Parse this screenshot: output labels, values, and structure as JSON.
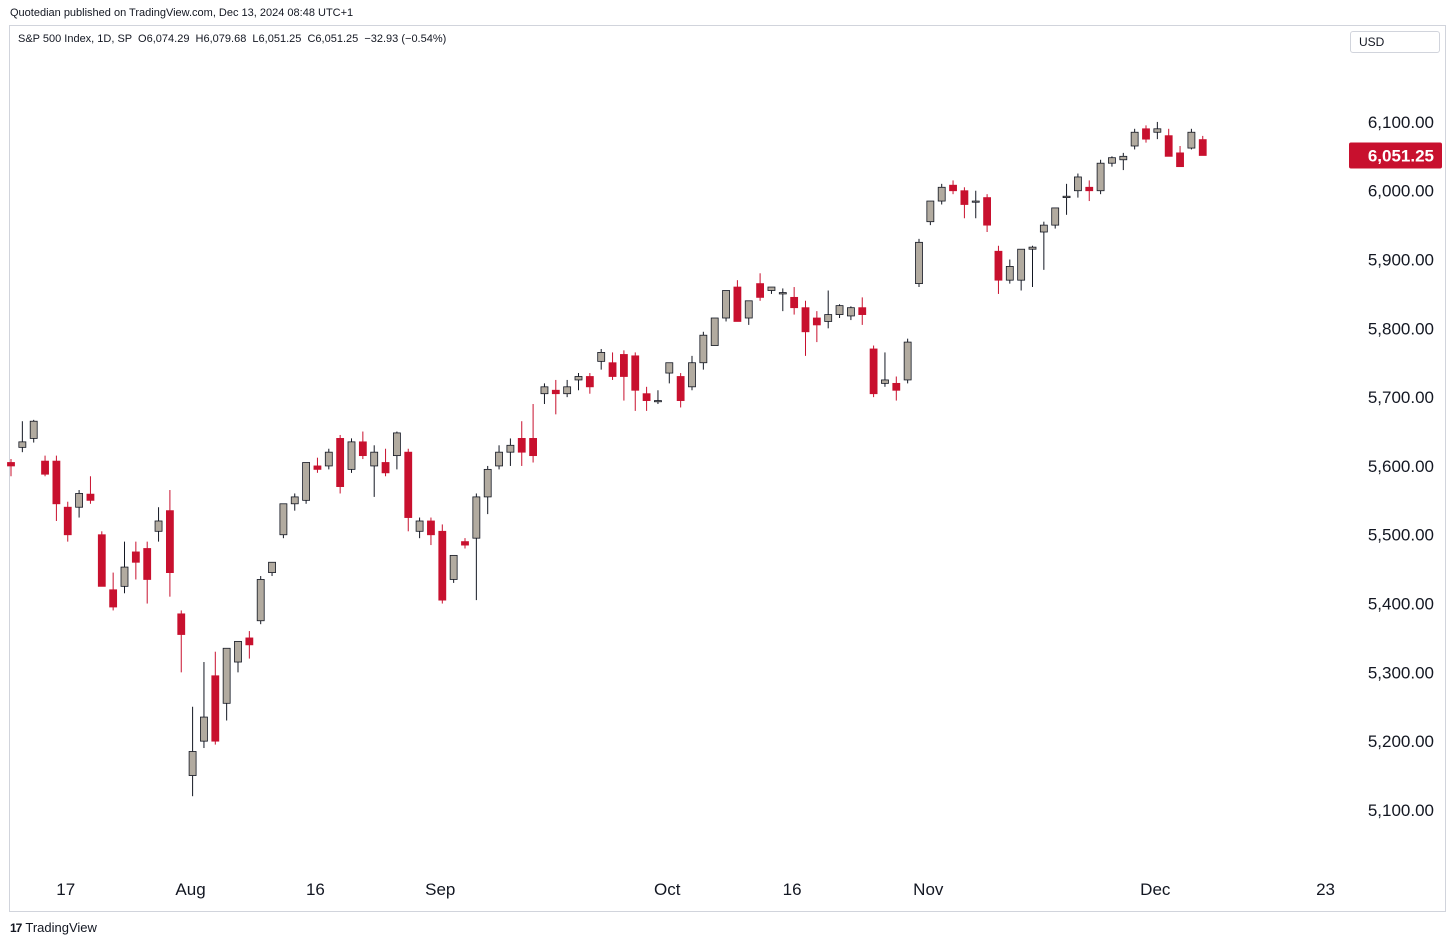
{
  "header": {
    "published": "Quotedian published on TradingView.com, Dec 13, 2024 08:48 UTC+1",
    "legend": "S&P 500 Index, 1D, SP  O6,074.29  H6,079.68  L6,051.25  C6,051.25  −32.93 (−0.54%)",
    "currency": "USD"
  },
  "footer": {
    "brand": "TradingView",
    "logo_glyph": "17"
  },
  "colors": {
    "up": "#b2aba0",
    "down": "#c8102e",
    "wick": "#131722",
    "price_tag": "#c8102e"
  },
  "chart_data": {
    "type": "candlestick",
    "title": "S&P 500 Index, 1D, SP",
    "ylim": [
      5020,
      6190
    ],
    "y_ticks": [
      "5,100.00",
      "5,200.00",
      "5,300.00",
      "5,400.00",
      "5,500.00",
      "5,600.00",
      "5,700.00",
      "5,800.00",
      "5,900.00",
      "6,000.00",
      "6,100.00"
    ],
    "x_ticks": [
      {
        "label": "17",
        "index": 2
      },
      {
        "label": "Aug",
        "index": 13
      },
      {
        "label": "16",
        "index": 24
      },
      {
        "label": "Sep",
        "index": 35
      },
      {
        "label": "Oct",
        "index": 55
      },
      {
        "label": "16",
        "index": 66
      },
      {
        "label": "Nov",
        "index": 78
      },
      {
        "label": "Dec",
        "index": 98
      },
      {
        "label": "23",
        "index": 113
      }
    ],
    "last_price": "6,051.25",
    "candles": [
      {
        "o": 5605,
        "h": 5610,
        "l": 5585,
        "c": 5600
      },
      {
        "o": 5627,
        "h": 5665,
        "l": 5620,
        "c": 5635
      },
      {
        "o": 5640,
        "h": 5667,
        "l": 5634,
        "c": 5665
      },
      {
        "o": 5607,
        "h": 5615,
        "l": 5585,
        "c": 5588
      },
      {
        "o": 5607,
        "h": 5615,
        "l": 5520,
        "c": 5545
      },
      {
        "o": 5540,
        "h": 5548,
        "l": 5490,
        "c": 5500
      },
      {
        "o": 5540,
        "h": 5565,
        "l": 5525,
        "c": 5560
      },
      {
        "o": 5559,
        "h": 5585,
        "l": 5545,
        "c": 5550
      },
      {
        "o": 5500,
        "h": 5505,
        "l": 5425,
        "c": 5425
      },
      {
        "o": 5420,
        "h": 5445,
        "l": 5390,
        "c": 5395
      },
      {
        "o": 5425,
        "h": 5490,
        "l": 5415,
        "c": 5453
      },
      {
        "o": 5475,
        "h": 5490,
        "l": 5435,
        "c": 5460
      },
      {
        "o": 5480,
        "h": 5490,
        "l": 5400,
        "c": 5435
      },
      {
        "o": 5505,
        "h": 5540,
        "l": 5490,
        "c": 5520
      },
      {
        "o": 5535,
        "h": 5565,
        "l": 5410,
        "c": 5445
      },
      {
        "o": 5385,
        "h": 5390,
        "l": 5300,
        "c": 5355
      },
      {
        "o": 5150,
        "h": 5250,
        "l": 5120,
        "c": 5185
      },
      {
        "o": 5200,
        "h": 5315,
        "l": 5190,
        "c": 5235
      },
      {
        "o": 5295,
        "h": 5330,
        "l": 5195,
        "c": 5200
      },
      {
        "o": 5255,
        "h": 5330,
        "l": 5230,
        "c": 5335
      },
      {
        "o": 5315,
        "h": 5345,
        "l": 5300,
        "c": 5345
      },
      {
        "o": 5350,
        "h": 5360,
        "l": 5320,
        "c": 5340
      },
      {
        "o": 5375,
        "h": 5440,
        "l": 5370,
        "c": 5435
      },
      {
        "o": 5445,
        "h": 5460,
        "l": 5440,
        "c": 5460
      },
      {
        "o": 5500,
        "h": 5545,
        "l": 5495,
        "c": 5545
      },
      {
        "o": 5545,
        "h": 5560,
        "l": 5535,
        "c": 5555
      },
      {
        "o": 5550,
        "h": 5605,
        "l": 5545,
        "c": 5605
      },
      {
        "o": 5600,
        "h": 5612,
        "l": 5590,
        "c": 5595
      },
      {
        "o": 5600,
        "h": 5625,
        "l": 5595,
        "c": 5620
      },
      {
        "o": 5640,
        "h": 5645,
        "l": 5560,
        "c": 5570
      },
      {
        "o": 5595,
        "h": 5640,
        "l": 5590,
        "c": 5635
      },
      {
        "o": 5635,
        "h": 5650,
        "l": 5610,
        "c": 5615
      },
      {
        "o": 5600,
        "h": 5630,
        "l": 5555,
        "c": 5620
      },
      {
        "o": 5605,
        "h": 5625,
        "l": 5585,
        "c": 5590
      },
      {
        "o": 5615,
        "h": 5650,
        "l": 5595,
        "c": 5648
      },
      {
        "o": 5620,
        "h": 5625,
        "l": 5505,
        "c": 5525
      },
      {
        "o": 5505,
        "h": 5525,
        "l": 5495,
        "c": 5520
      },
      {
        "o": 5520,
        "h": 5525,
        "l": 5485,
        "c": 5500
      },
      {
        "o": 5505,
        "h": 5515,
        "l": 5400,
        "c": 5405
      },
      {
        "o": 5435,
        "h": 5470,
        "l": 5430,
        "c": 5470
      },
      {
        "o": 5490,
        "h": 5495,
        "l": 5480,
        "c": 5485
      },
      {
        "o": 5495,
        "h": 5560,
        "l": 5405,
        "c": 5555
      },
      {
        "o": 5555,
        "h": 5600,
        "l": 5530,
        "c": 5595
      },
      {
        "o": 5600,
        "h": 5630,
        "l": 5595,
        "c": 5620
      },
      {
        "o": 5620,
        "h": 5640,
        "l": 5600,
        "c": 5630
      },
      {
        "o": 5640,
        "h": 5665,
        "l": 5600,
        "c": 5620
      },
      {
        "o": 5640,
        "h": 5690,
        "l": 5605,
        "c": 5615
      },
      {
        "o": 5705,
        "h": 5720,
        "l": 5690,
        "c": 5715
      },
      {
        "o": 5710,
        "h": 5725,
        "l": 5675,
        "c": 5705
      },
      {
        "o": 5705,
        "h": 5725,
        "l": 5700,
        "c": 5715
      },
      {
        "o": 5725,
        "h": 5735,
        "l": 5710,
        "c": 5730
      },
      {
        "o": 5730,
        "h": 5735,
        "l": 5705,
        "c": 5715
      },
      {
        "o": 5752,
        "h": 5770,
        "l": 5740,
        "c": 5765
      },
      {
        "o": 5750,
        "h": 5765,
        "l": 5725,
        "c": 5730
      },
      {
        "o": 5762,
        "h": 5768,
        "l": 5695,
        "c": 5730
      },
      {
        "o": 5760,
        "h": 5765,
        "l": 5680,
        "c": 5710
      },
      {
        "o": 5705,
        "h": 5715,
        "l": 5680,
        "c": 5695
      },
      {
        "o": 5695,
        "h": 5710,
        "l": 5690,
        "c": 5695
      },
      {
        "o": 5735,
        "h": 5750,
        "l": 5720,
        "c": 5750
      },
      {
        "o": 5730,
        "h": 5735,
        "l": 5685,
        "c": 5695
      },
      {
        "o": 5715,
        "h": 5760,
        "l": 5710,
        "c": 5750
      },
      {
        "o": 5750,
        "h": 5795,
        "l": 5740,
        "c": 5790
      },
      {
        "o": 5775,
        "h": 5815,
        "l": 5775,
        "c": 5815
      },
      {
        "o": 5815,
        "h": 5855,
        "l": 5810,
        "c": 5855
      },
      {
        "o": 5860,
        "h": 5870,
        "l": 5810,
        "c": 5810
      },
      {
        "o": 5815,
        "h": 5840,
        "l": 5805,
        "c": 5840
      },
      {
        "o": 5865,
        "h": 5880,
        "l": 5840,
        "c": 5845
      },
      {
        "o": 5855,
        "h": 5860,
        "l": 5850,
        "c": 5860
      },
      {
        "o": 5850,
        "h": 5858,
        "l": 5825,
        "c": 5852
      },
      {
        "o": 5845,
        "h": 5860,
        "l": 5820,
        "c": 5830
      },
      {
        "o": 5830,
        "h": 5840,
        "l": 5760,
        "c": 5795
      },
      {
        "o": 5815,
        "h": 5825,
        "l": 5780,
        "c": 5805
      },
      {
        "o": 5810,
        "h": 5855,
        "l": 5800,
        "c": 5820
      },
      {
        "o": 5820,
        "h": 5835,
        "l": 5815,
        "c": 5833
      },
      {
        "o": 5818,
        "h": 5832,
        "l": 5812,
        "c": 5830
      },
      {
        "o": 5830,
        "h": 5845,
        "l": 5805,
        "c": 5820
      },
      {
        "o": 5770,
        "h": 5775,
        "l": 5700,
        "c": 5705
      },
      {
        "o": 5720,
        "h": 5765,
        "l": 5715,
        "c": 5725
      },
      {
        "o": 5720,
        "h": 5730,
        "l": 5695,
        "c": 5710
      },
      {
        "o": 5725,
        "h": 5785,
        "l": 5720,
        "c": 5780
      },
      {
        "o": 5865,
        "h": 5930,
        "l": 5860,
        "c": 5925
      },
      {
        "o": 5955,
        "h": 5985,
        "l": 5950,
        "c": 5985
      },
      {
        "o": 5985,
        "h": 6010,
        "l": 5980,
        "c": 6005
      },
      {
        "o": 6008,
        "h": 6015,
        "l": 5995,
        "c": 6000
      },
      {
        "o": 6000,
        "h": 6005,
        "l": 5960,
        "c": 5980
      },
      {
        "o": 5985,
        "h": 6000,
        "l": 5960,
        "c": 5985
      },
      {
        "o": 5990,
        "h": 5995,
        "l": 5940,
        "c": 5950
      },
      {
        "o": 5912,
        "h": 5920,
        "l": 5850,
        "c": 5870
      },
      {
        "o": 5870,
        "h": 5900,
        "l": 5865,
        "c": 5890
      },
      {
        "o": 5870,
        "h": 5915,
        "l": 5855,
        "c": 5915
      },
      {
        "o": 5915,
        "h": 5920,
        "l": 5860,
        "c": 5918
      },
      {
        "o": 5940,
        "h": 5955,
        "l": 5885,
        "c": 5950
      },
      {
        "o": 5950,
        "h": 5975,
        "l": 5945,
        "c": 5975
      },
      {
        "o": 5990,
        "h": 6010,
        "l": 5965,
        "c": 5992
      },
      {
        "o": 6000,
        "h": 6025,
        "l": 5990,
        "c": 6020
      },
      {
        "o": 6005,
        "h": 6015,
        "l": 5985,
        "c": 6000
      },
      {
        "o": 6000,
        "h": 6045,
        "l": 5995,
        "c": 6040
      },
      {
        "o": 6040,
        "h": 6050,
        "l": 6035,
        "c": 6048
      },
      {
        "o": 6045,
        "h": 6055,
        "l": 6030,
        "c": 6050
      },
      {
        "o": 6065,
        "h": 6090,
        "l": 6060,
        "c": 6085
      },
      {
        "o": 6090,
        "h": 6095,
        "l": 6070,
        "c": 6075
      },
      {
        "o": 6085,
        "h": 6100,
        "l": 6075,
        "c": 6090
      },
      {
        "o": 6080,
        "h": 6090,
        "l": 6050,
        "c": 6050
      },
      {
        "o": 6055,
        "h": 6065,
        "l": 6035,
        "c": 6035
      },
      {
        "o": 6062,
        "h": 6090,
        "l": 6060,
        "c": 6085
      },
      {
        "o": 6074.29,
        "h": 6079.68,
        "l": 6051.25,
        "c": 6051.25
      }
    ]
  }
}
